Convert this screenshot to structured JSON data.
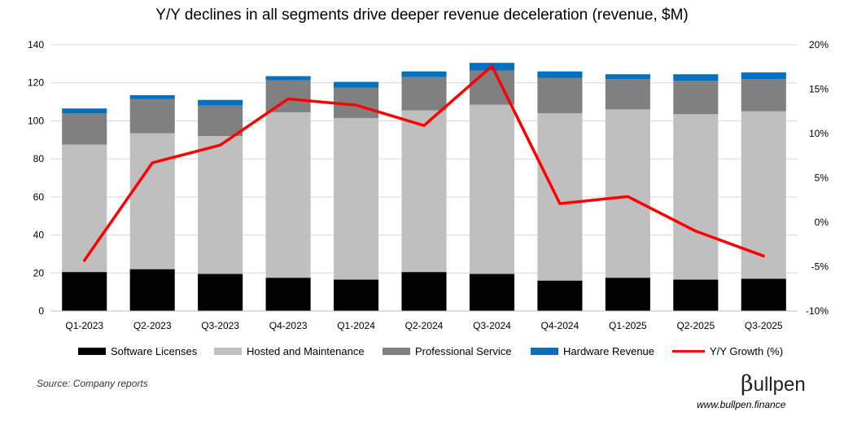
{
  "title": "Y/Y declines in all segments drive deeper revenue deceleration (revenue, $M)",
  "source": "Source: Company reports",
  "brand": {
    "logo_text": "ullpen",
    "logo_symbol": "β",
    "url": "www.bullpen.finance"
  },
  "colors": {
    "software": "#000000",
    "hosted": "#bfbfbf",
    "professional": "#808080",
    "hardware": "#0070c0",
    "growth": "#ff0000"
  },
  "chart_data": {
    "type": "bar",
    "stacked": true,
    "categories": [
      "Q1-2023",
      "Q2-2023",
      "Q3-2023",
      "Q4-2023",
      "Q1-2024",
      "Q2-2024",
      "Q3-2024",
      "Q4-2024",
      "Q1-2025",
      "Q2-2025",
      "Q3-2025"
    ],
    "series": [
      {
        "name": "Software Licenses",
        "values": [
          20.5,
          22,
          19.5,
          17.5,
          16.5,
          20.5,
          19.5,
          16,
          17.5,
          16.5,
          17
        ]
      },
      {
        "name": "Hosted and Maintenance",
        "values": [
          67,
          71.5,
          72.5,
          87,
          85,
          85,
          89,
          88,
          88.5,
          87,
          88
        ]
      },
      {
        "name": "Professional Service",
        "values": [
          16.5,
          18,
          16,
          16.8,
          16,
          17.5,
          18,
          18.5,
          16,
          17.5,
          17
        ]
      },
      {
        "name": "Hardware Revenue",
        "values": [
          2.5,
          2,
          3,
          2.2,
          3,
          3,
          4,
          3.5,
          2.5,
          3.5,
          3.5
        ]
      }
    ],
    "line_series": {
      "name": "Y/Y Growth (%)",
      "axis": "right",
      "values": [
        -4.3,
        6.7,
        8.7,
        13.9,
        13.2,
        10.9,
        17.6,
        2.1,
        2.9,
        -1.0,
        -3.8
      ]
    },
    "left_axis": {
      "ylim": [
        0,
        140
      ],
      "ticks": [
        "0",
        "20",
        "40",
        "60",
        "80",
        "100",
        "120",
        "140"
      ]
    },
    "right_axis": {
      "ylim": [
        -10,
        20
      ],
      "ticks": [
        "-10%",
        "-5%",
        "0%",
        "5%",
        "10%",
        "15%",
        "20%"
      ]
    },
    "legend_position": "bottom",
    "grid": true
  }
}
